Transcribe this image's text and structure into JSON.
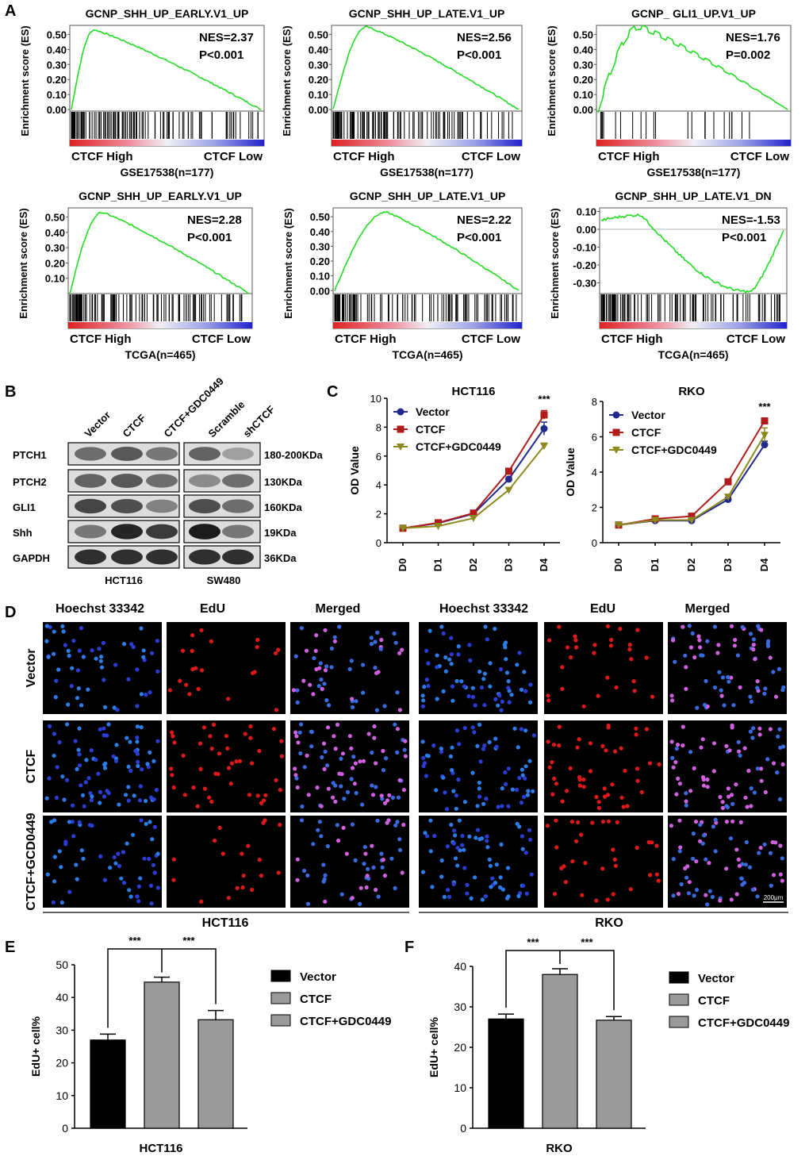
{
  "panel_letters": [
    "A",
    "B",
    "C",
    "D",
    "E",
    "F"
  ],
  "gsea": {
    "ylabel": "Enrichment score (ES)",
    "plots": [
      {
        "title": "GCNP_SHH_UP_EARLY.V1_UP",
        "nes": "NES=2.37",
        "p": "P<0.001",
        "high": "CTCF High",
        "low": "CTCF Low",
        "dataset": "GSE17538(n=177)",
        "yticks": [
          "0.50",
          "0.40",
          "0.30",
          "0.20",
          "0.10",
          "0.00"
        ]
      },
      {
        "title": "GCNP_SHH_UP_LATE.V1_UP",
        "nes": "NES=2.56",
        "p": "P<0.001",
        "high": "CTCF High",
        "low": "CTCF Low",
        "dataset": "GSE17538(n=177)",
        "yticks": [
          "0.50",
          "0.40",
          "0.30",
          "0.20",
          "0.10",
          "0.00"
        ]
      },
      {
        "title": "GCNP_ GLI1_UP.V1_UP",
        "nes": "NES=1.76",
        "p": "P=0.002",
        "high": "CTCF High",
        "low": "CTCF Low",
        "dataset": "GSE17538(n=177)",
        "yticks": [
          "0.50",
          "0.40",
          "0.30",
          "0.20",
          "0.10",
          "0.00"
        ]
      },
      {
        "title": "GCNP_SHH_UP_EARLY.V1_UP",
        "nes": "NES=2.28",
        "p": "P<0.001",
        "high": "CTCF High",
        "low": "CTCF Low",
        "dataset": "TCGA(n=465)",
        "yticks": [
          "0.50",
          "0.40",
          "0.30",
          "0.20",
          "0.10"
        ]
      },
      {
        "title": "GCNP_SHH_UP_LATE.V1_UP",
        "nes": "NES=2.22",
        "p": "P<0.001",
        "high": "CTCF High",
        "low": "CTCF Low",
        "dataset": "TCGA(n=465)",
        "yticks": [
          "0.50",
          "0.40",
          "0.30",
          "0.20",
          "0.10",
          "0.00"
        ]
      },
      {
        "title": "GCNP_SHH_UP_LATE.V1_DN",
        "nes": "NES=-1.53",
        "p": "P<0.001",
        "high": "CTCF High",
        "low": "CTCF Low",
        "dataset": "TCGA(n=465)",
        "yticks": [
          "0.10",
          "0.00",
          "-0.10",
          "-0.20",
          "-0.30"
        ]
      }
    ]
  },
  "western": {
    "lanes": [
      "Vector",
      "CTCF",
      "CTCF+GDC0449",
      "Scramble",
      "shCTCF"
    ],
    "proteins": [
      "PTCH1",
      "PTCH2",
      "GLI1",
      "Shh",
      "GAPDH"
    ],
    "sizes": [
      "180-200KDa",
      "130KDa",
      "160KDa",
      "19KDa",
      "36KDa"
    ],
    "cell_lines": [
      "HCT116",
      "SW480"
    ]
  },
  "growth": {
    "ylabel": "OD Value",
    "x": [
      "D0",
      "D1",
      "D2",
      "D3",
      "D4"
    ],
    "significance": "***",
    "legend": [
      "Vector",
      "CTCF",
      "CTCF+GDC0449"
    ],
    "colors": {
      "vector": "#1f2a8c",
      "ctcf": "#b01c1c",
      "gdc": "#8c8a1c"
    }
  },
  "edu_images": {
    "column_headers": [
      "Hoechst 33342",
      "EdU",
      "Merged",
      "Hoechst 33342",
      "EdU",
      "Merged"
    ],
    "row_labels": [
      "Vector",
      "CTCF",
      "CTCF+GCD0449"
    ],
    "cell_lines": [
      "HCT116",
      "RKO"
    ],
    "scale_bar": "200μm"
  },
  "edu_bars": {
    "ylabel": "EdU+ cell%",
    "significance": "***",
    "legend": [
      "Vector",
      "CTCF",
      "CTCF+GDC0449"
    ]
  },
  "chart_data": [
    {
      "type": "line",
      "title": "HCT116",
      "ylabel": "OD Value",
      "x": [
        "D0",
        "D1",
        "D2",
        "D3",
        "D4"
      ],
      "ylim": [
        0,
        10
      ],
      "yticks": [
        0,
        2,
        4,
        6,
        8,
        10
      ],
      "series": [
        {
          "name": "Vector",
          "values": [
            1.0,
            1.35,
            2.0,
            4.4,
            7.9
          ],
          "err": [
            0.05,
            0.08,
            0.1,
            0.15,
            0.45
          ]
        },
        {
          "name": "CTCF",
          "values": [
            1.0,
            1.38,
            2.05,
            4.95,
            8.85
          ],
          "err": [
            0.05,
            0.08,
            0.1,
            0.15,
            0.3
          ]
        },
        {
          "name": "CTCF+GDC0449",
          "values": [
            1.0,
            1.15,
            1.7,
            3.65,
            6.7
          ],
          "err": [
            0.05,
            0.08,
            0.1,
            0.15,
            0.2
          ]
        }
      ]
    },
    {
      "type": "line",
      "title": "RKO",
      "ylabel": "OD Value",
      "x": [
        "D0",
        "D1",
        "D2",
        "D3",
        "D4"
      ],
      "ylim": [
        0,
        8
      ],
      "yticks": [
        0,
        2,
        4,
        6,
        8
      ],
      "series": [
        {
          "name": "Vector",
          "values": [
            1.0,
            1.25,
            1.25,
            2.45,
            5.55
          ],
          "err": [
            0.05,
            0.08,
            0.08,
            0.12,
            0.2
          ]
        },
        {
          "name": "CTCF",
          "values": [
            1.0,
            1.35,
            1.5,
            3.45,
            6.9
          ],
          "err": [
            0.05,
            0.08,
            0.08,
            0.12,
            0.15
          ]
        },
        {
          "name": "CTCF+GDC0449",
          "values": [
            1.0,
            1.28,
            1.28,
            2.6,
            6.1
          ],
          "err": [
            0.05,
            0.08,
            0.08,
            0.12,
            0.4
          ]
        }
      ]
    },
    {
      "type": "bar",
      "title": "",
      "xlabel": "HCT116",
      "ylabel": "EdU+ cell%",
      "categories": [
        "Vector",
        "CTCF",
        "CTCF+GDC0449"
      ],
      "values": [
        27,
        44.7,
        33.2
      ],
      "err": [
        1.8,
        1.5,
        2.8
      ],
      "ylim": [
        0,
        50
      ],
      "yticks": [
        0,
        10,
        20,
        30,
        40,
        50
      ]
    },
    {
      "type": "bar",
      "title": "",
      "xlabel": "RKO",
      "ylabel": "EdU+ cell%",
      "categories": [
        "Vector",
        "CTCF",
        "CTCF+GDC0449"
      ],
      "values": [
        27,
        38,
        26.7
      ],
      "err": [
        1.2,
        1.4,
        0.9
      ],
      "ylim": [
        0,
        40
      ],
      "yticks": [
        0,
        10,
        20,
        30,
        40
      ]
    }
  ]
}
